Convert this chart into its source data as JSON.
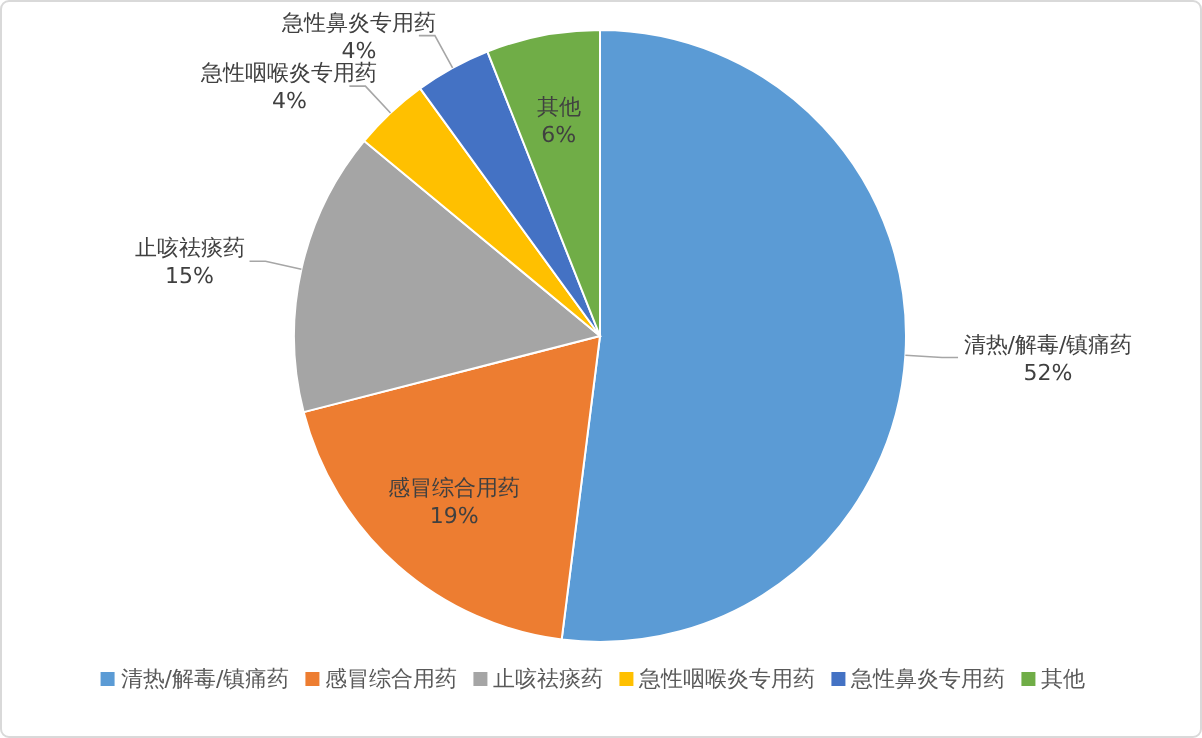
{
  "chart_data": {
    "type": "pie",
    "categories": [
      "清热/解毒/镇痛药",
      "感冒综合用药",
      "止咳祛痰药",
      "急性咽喉炎专用药",
      "急性鼻炎专用药",
      "其他"
    ],
    "values": [
      52,
      19,
      15,
      4,
      4,
      6
    ],
    "value_labels": [
      "52%",
      "19%",
      "15%",
      "4%",
      "4%",
      "6%"
    ],
    "colors": [
      "#5b9bd5",
      "#ed7d31",
      "#a5a5a5",
      "#ffc000",
      "#4472c4",
      "#70ad47"
    ],
    "legend": "bottom"
  }
}
